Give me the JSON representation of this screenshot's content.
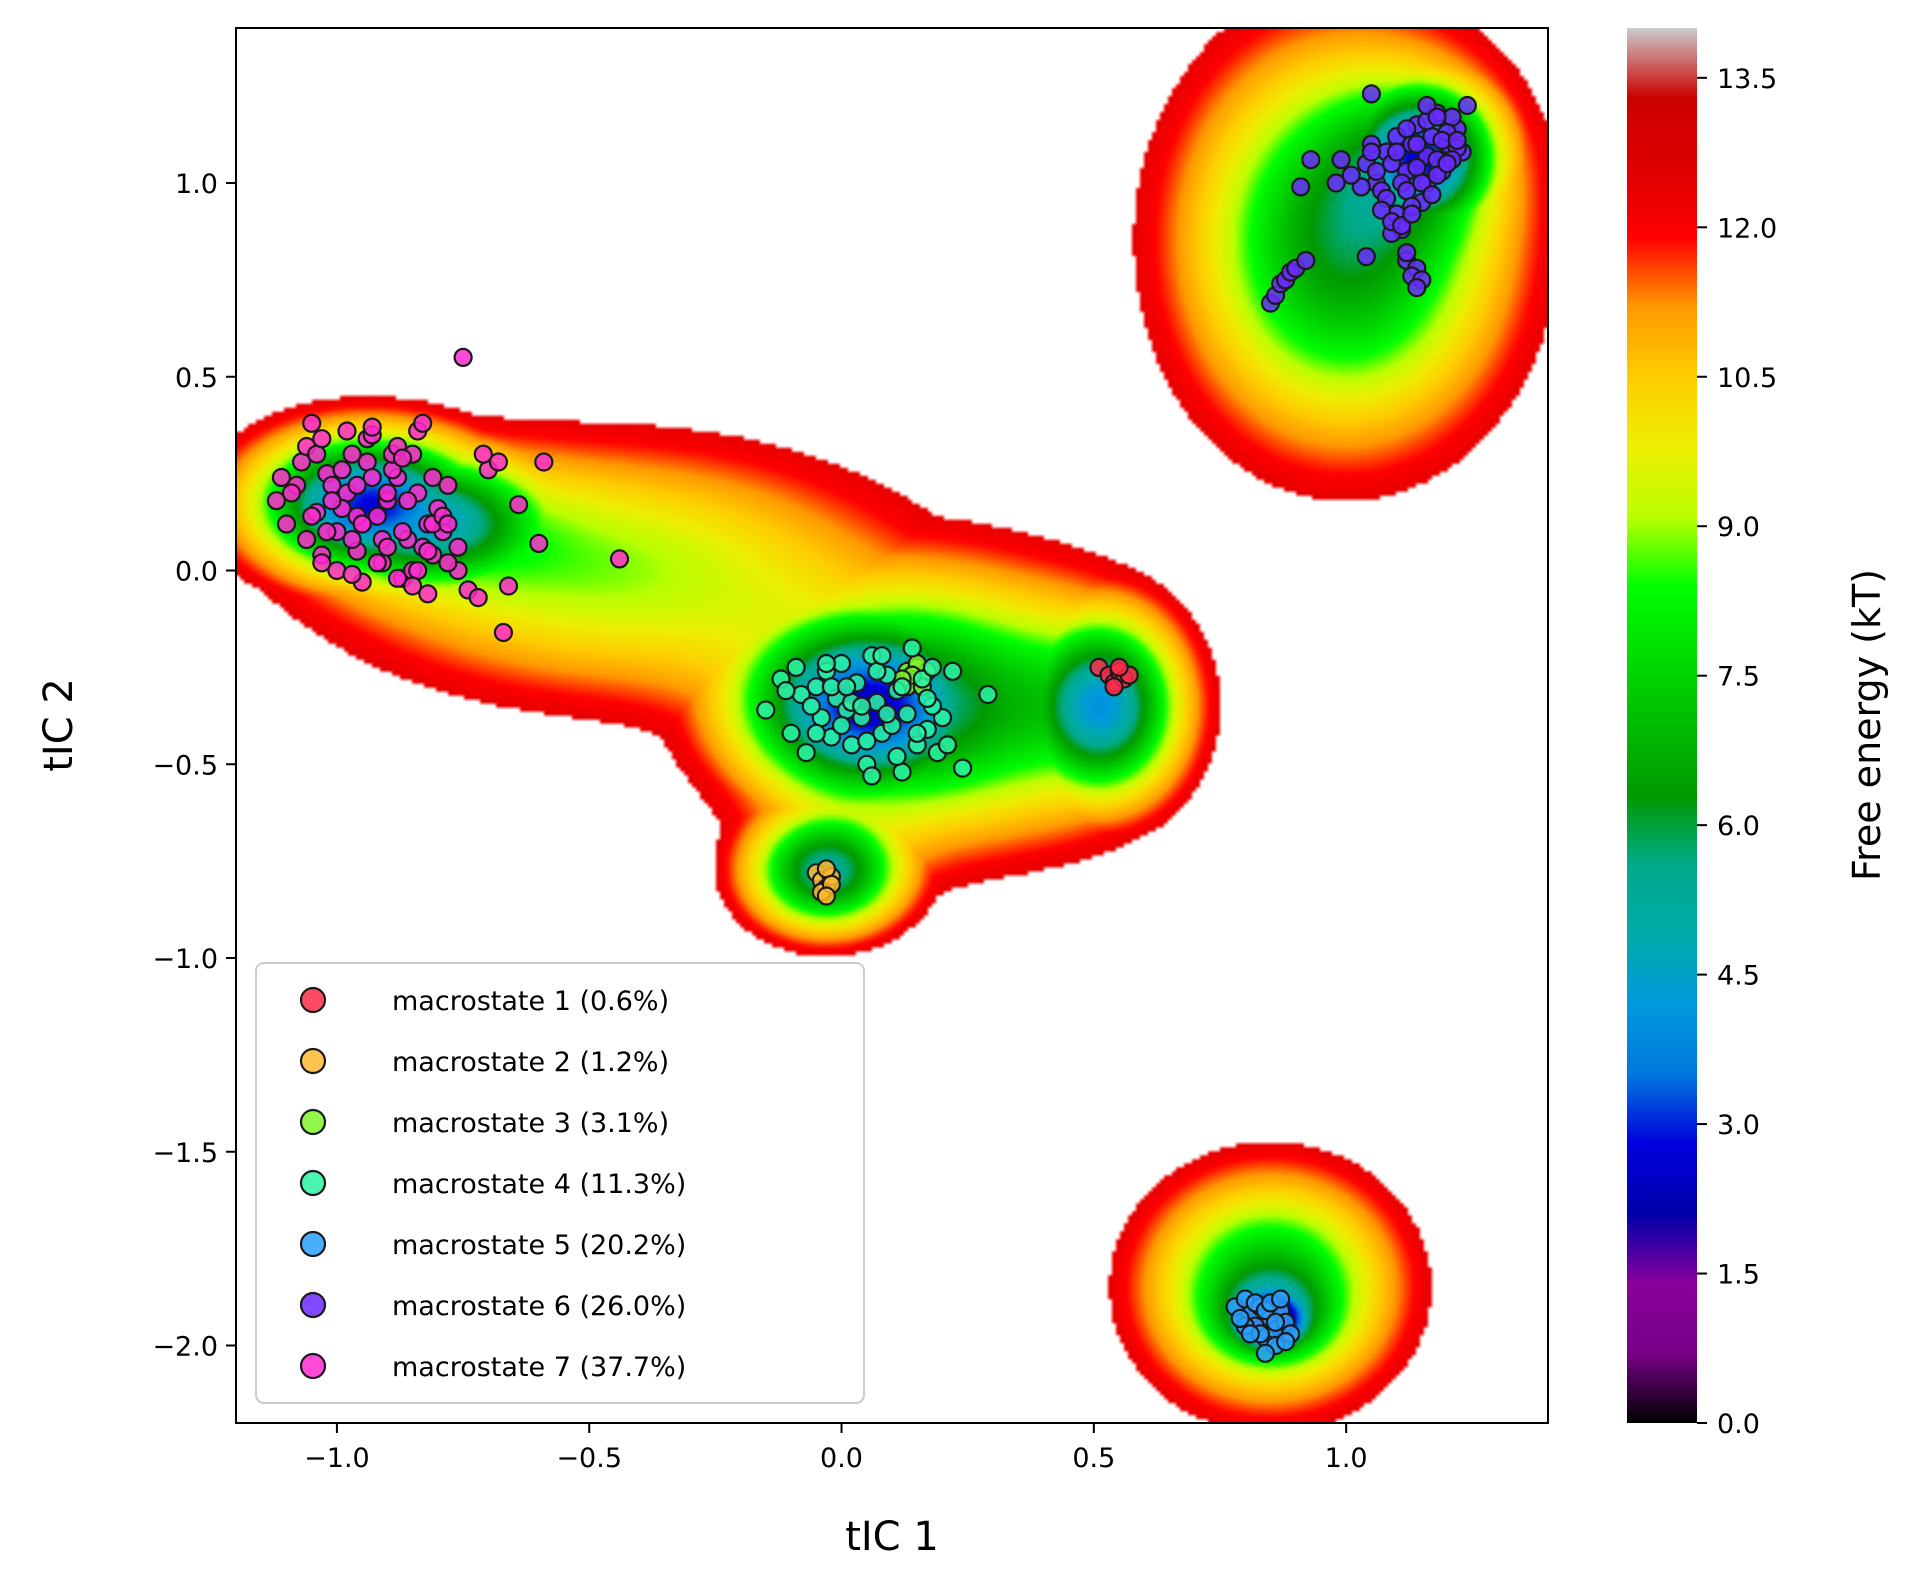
{
  "chart_data": {
    "type": "scatter",
    "title": "",
    "xlabel": "tIC 1",
    "ylabel": "tIC 2",
    "xlim": [
      -1.2,
      1.4
    ],
    "ylim": [
      -2.2,
      1.4
    ],
    "xticks": [
      -1.0,
      -0.5,
      0.0,
      0.5,
      1.0
    ],
    "xtick_labels": [
      "−1.0",
      "−0.5",
      "0.0",
      "0.5",
      "1.0"
    ],
    "yticks": [
      1.0,
      0.5,
      0.0,
      -0.5,
      -1.0,
      -1.5,
      -2.0
    ],
    "ytick_labels": [
      "1.0",
      "0.5",
      "0.0",
      "−0.5",
      "−1.0",
      "−1.5",
      "−2.0"
    ],
    "background": "filled contour of free energy (kT)",
    "colorbar": {
      "label": "Free energy (kT)",
      "range": [
        0.0,
        14.0
      ],
      "ticks": [
        0.0,
        1.5,
        3.0,
        4.5,
        6.0,
        7.5,
        9.0,
        10.5,
        12.0,
        13.5
      ],
      "tick_labels": [
        "0.0",
        "1.5",
        "3.0",
        "4.5",
        "6.0",
        "7.5",
        "9.0",
        "10.5",
        "12.0",
        "13.5"
      ],
      "colormap": "nipy_spectral"
    },
    "basins": [
      {
        "center": [
          -0.95,
          0.18
        ],
        "sx": 0.16,
        "sy": 0.13,
        "depth": 9.0
      },
      {
        "center": [
          -0.8,
          0.12
        ],
        "sx": 0.18,
        "sy": 0.13,
        "depth": 7.0
      },
      {
        "center": [
          -0.45,
          0.0
        ],
        "sx": 0.38,
        "sy": 0.23,
        "depth": 4.5
      },
      {
        "center": [
          0.05,
          -0.35
        ],
        "sx": 0.18,
        "sy": 0.17,
        "depth": 9.5
      },
      {
        "center": [
          0.2,
          -0.35
        ],
        "sx": 0.28,
        "sy": 0.25,
        "depth": 6.0
      },
      {
        "center": [
          0.52,
          -0.35
        ],
        "sx": 0.11,
        "sy": 0.17,
        "depth": 8.5
      },
      {
        "center": [
          -0.03,
          -0.78
        ],
        "sx": 0.11,
        "sy": 0.11,
        "depth": 8.0
      },
      {
        "center": [
          1.15,
          1.07
        ],
        "sx": 0.11,
        "sy": 0.14,
        "depth": 9.5
      },
      {
        "center": [
          1.0,
          0.85
        ],
        "sx": 0.22,
        "sy": 0.35,
        "depth": 7.5
      },
      {
        "center": [
          0.85,
          -1.93
        ],
        "sx": 0.07,
        "sy": 0.07,
        "depth": 11.5
      },
      {
        "center": [
          0.85,
          -1.85
        ],
        "sx": 0.17,
        "sy": 0.2,
        "depth": 7.0
      }
    ],
    "series": [
      {
        "name": "macrostate 1 (0.6%)",
        "color": "#ff2a4a",
        "x": [
          0.51,
          0.53,
          0.54,
          0.55,
          0.56,
          0.57,
          0.55,
          0.54
        ],
        "y": [
          -0.25,
          -0.27,
          -0.29,
          -0.26,
          -0.28,
          -0.27,
          -0.25,
          -0.3
        ]
      },
      {
        "name": "macrostate 2 (1.2%)",
        "color": "#ffb830",
        "x": [
          -0.05,
          -0.04,
          -0.03,
          -0.02,
          -0.04,
          -0.03,
          -0.02,
          -0.03
        ],
        "y": [
          -0.78,
          -0.8,
          -0.82,
          -0.79,
          -0.83,
          -0.77,
          -0.81,
          -0.84
        ]
      },
      {
        "name": "macrostate 3 (3.1%)",
        "color": "#7ff52a",
        "x": [
          0.13,
          0.15,
          0.16,
          0.14,
          0.17,
          0.15,
          0.13,
          0.16,
          0.14,
          0.12
        ],
        "y": [
          -0.26,
          -0.25,
          -0.28,
          -0.29,
          -0.26,
          -0.24,
          -0.3,
          -0.3,
          -0.27,
          -0.28
        ]
      },
      {
        "name": "macrostate 4 (11.3%)",
        "color": "#2af5a3",
        "x": [
          -0.15,
          -0.12,
          -0.1,
          -0.08,
          -0.07,
          -0.05,
          -0.04,
          -0.03,
          -0.02,
          -0.01,
          0.0,
          0.01,
          0.02,
          0.03,
          0.04,
          0.05,
          0.06,
          0.07,
          0.08,
          0.09,
          0.1,
          0.11,
          0.12,
          0.13,
          0.14,
          0.15,
          0.16,
          0.17,
          0.18,
          0.19,
          0.2,
          0.22,
          0.24,
          0.29,
          -0.09,
          -0.06,
          -0.02,
          0.0,
          0.02,
          0.05,
          0.07,
          0.09,
          0.12,
          0.15,
          0.18,
          0.21,
          -0.05,
          -0.03,
          0.01,
          0.04,
          0.08,
          0.11,
          0.06,
          0.17,
          -0.11
        ],
        "y": [
          -0.36,
          -0.28,
          -0.42,
          -0.32,
          -0.47,
          -0.3,
          -0.38,
          -0.26,
          -0.43,
          -0.33,
          -0.24,
          -0.36,
          -0.45,
          -0.29,
          -0.38,
          -0.5,
          -0.22,
          -0.34,
          -0.42,
          -0.27,
          -0.4,
          -0.31,
          -0.52,
          -0.37,
          -0.2,
          -0.45,
          -0.28,
          -0.41,
          -0.25,
          -0.47,
          -0.38,
          -0.26,
          -0.51,
          -0.32,
          -0.25,
          -0.35,
          -0.3,
          -0.4,
          -0.34,
          -0.44,
          -0.26,
          -0.37,
          -0.3,
          -0.42,
          -0.35,
          -0.45,
          -0.42,
          -0.24,
          -0.3,
          -0.35,
          -0.22,
          -0.48,
          -0.53,
          -0.33,
          -0.31
        ]
      },
      {
        "name": "macrostate 5 (20.2%)",
        "color": "#2aa0ff",
        "x": [
          0.78,
          0.8,
          0.81,
          0.82,
          0.83,
          0.84,
          0.85,
          0.86,
          0.87,
          0.88,
          0.89,
          0.8,
          0.82,
          0.84,
          0.86,
          0.88,
          0.79,
          0.83,
          0.85,
          0.87,
          0.81,
          0.84,
          0.86
        ],
        "y": [
          -1.9,
          -1.88,
          -1.92,
          -1.95,
          -1.9,
          -1.98,
          -1.93,
          -1.96,
          -1.91,
          -1.94,
          -1.97,
          -1.95,
          -1.89,
          -1.91,
          -2.0,
          -1.99,
          -1.93,
          -1.97,
          -1.89,
          -1.88,
          -1.97,
          -2.02,
          -1.94
        ]
      },
      {
        "name": "macrostate 6 (26.0%)",
        "color": "#6a2aff",
        "x": [
          1.04,
          1.06,
          1.08,
          1.1,
          1.12,
          1.14,
          1.16,
          1.18,
          1.2,
          1.22,
          1.24,
          1.05,
          1.07,
          1.09,
          1.11,
          1.13,
          1.15,
          1.17,
          1.19,
          1.21,
          1.23,
          1.1,
          1.12,
          1.14,
          1.16,
          1.18,
          1.2,
          1.22,
          1.06,
          1.08,
          1.1,
          1.12,
          1.14,
          1.16,
          1.18,
          1.2,
          1.15,
          1.17,
          1.19,
          1.21,
          1.13,
          1.11,
          1.09,
          1.07,
          1.05,
          1.03,
          1.01,
          0.99,
          0.98,
          1.12,
          1.14,
          1.13,
          1.15,
          1.14,
          1.12,
          1.09,
          1.11,
          1.13,
          1.04,
          0.85,
          0.86,
          0.87,
          0.88,
          0.89,
          0.9,
          0.92,
          1.16,
          1.18,
          1.2,
          1.22
        ],
        "y": [
          1.05,
          1.0,
          1.08,
          1.12,
          1.03,
          1.15,
          1.07,
          1.18,
          1.1,
          1.14,
          1.2,
          1.1,
          0.98,
          1.05,
          1.0,
          1.1,
          0.95,
          1.12,
          1.03,
          1.17,
          1.08,
          0.92,
          0.98,
          1.04,
          1.0,
          1.06,
          1.13,
          1.09,
          1.03,
          0.96,
          1.08,
          1.14,
          1.1,
          1.16,
          1.02,
          1.05,
          1.0,
          0.97,
          1.11,
          1.06,
          0.94,
          0.88,
          0.87,
          0.93,
          1.08,
          0.99,
          1.02,
          1.06,
          1.0,
          0.8,
          0.78,
          0.76,
          0.75,
          0.73,
          0.82,
          0.9,
          0.89,
          0.92,
          0.81,
          0.69,
          0.71,
          0.74,
          0.75,
          0.77,
          0.78,
          0.8,
          1.2,
          1.17,
          1.05,
          1.11
        ],
        "extra": [
          [
            1.05,
            1.23
          ],
          [
            0.93,
            1.06
          ],
          [
            0.91,
            0.99
          ]
        ]
      },
      {
        "name": "macrostate 7 (37.7%)",
        "color": "#ff2ad0",
        "x": [
          -1.12,
          -1.1,
          -1.08,
          -1.06,
          -1.04,
          -1.02,
          -1.0,
          -0.98,
          -0.96,
          -0.94,
          -0.92,
          -0.9,
          -0.88,
          -0.86,
          -0.84,
          -0.82,
          -0.8,
          -0.78,
          -0.76,
          -1.09,
          -1.07,
          -1.05,
          -1.03,
          -1.01,
          -0.99,
          -0.97,
          -0.95,
          -0.93,
          -0.91,
          -0.89,
          -0.87,
          -0.85,
          -0.83,
          -0.81,
          -0.79,
          -1.11,
          -1.06,
          -1.01,
          -0.96,
          -0.91,
          -0.86,
          -0.81,
          -0.76,
          -1.04,
          -0.99,
          -0.94,
          -0.89,
          -0.84,
          -0.79,
          -1.02,
          -0.97,
          -0.92,
          -0.87,
          -0.82,
          -1.0,
          -0.95,
          -0.9,
          -0.85,
          -0.98,
          -0.93,
          -0.88,
          -0.83,
          -1.03,
          -0.96,
          -0.9,
          -0.84,
          -0.78,
          -0.74,
          -0.72,
          -0.7,
          -0.68,
          -0.66,
          -0.64,
          -0.6,
          -0.59,
          -0.67,
          -0.82,
          -0.85,
          -0.88,
          -0.97,
          -1.03,
          -0.95,
          -0.75,
          -0.71,
          -0.44,
          -0.78,
          -1.05,
          -0.93,
          -0.87,
          -0.81
        ],
        "y": [
          0.18,
          0.12,
          0.22,
          0.08,
          0.15,
          0.25,
          0.1,
          0.2,
          0.05,
          0.28,
          0.14,
          0.18,
          0.24,
          0.08,
          0.2,
          0.12,
          0.16,
          0.22,
          0.06,
          0.2,
          0.28,
          0.14,
          0.04,
          0.22,
          0.16,
          0.3,
          0.12,
          0.24,
          0.02,
          0.26,
          0.1,
          0.3,
          0.06,
          0.04,
          0.1,
          0.24,
          0.32,
          0.18,
          0.22,
          0.08,
          0.18,
          0.12,
          0.0,
          0.3,
          0.26,
          0.34,
          0.3,
          0.36,
          0.14,
          0.1,
          0.08,
          0.02,
          -0.02,
          0.05,
          0.0,
          -0.03,
          0.06,
          0.0,
          0.36,
          0.35,
          0.32,
          0.38,
          0.34,
          0.14,
          0.2,
          0.0,
          0.02,
          -0.05,
          -0.07,
          0.26,
          0.28,
          -0.04,
          0.17,
          0.07,
          0.28,
          -0.16,
          -0.06,
          -0.04,
          -0.02,
          -0.01,
          0.02,
          0.12,
          0.55,
          0.3,
          0.03,
          0.12,
          0.38,
          0.37,
          0.29,
          0.24
        ]
      }
    ]
  }
}
